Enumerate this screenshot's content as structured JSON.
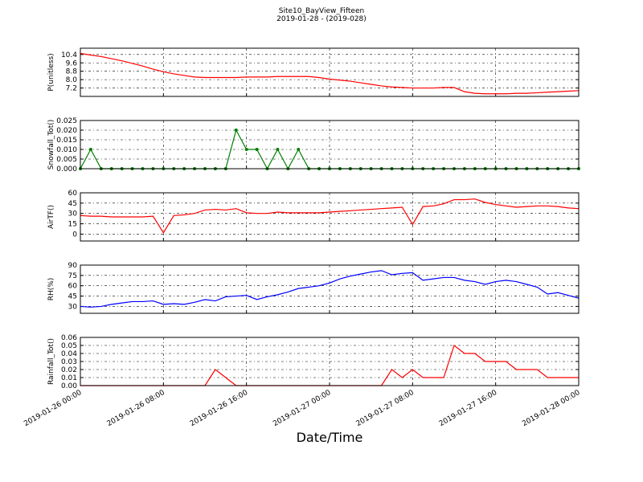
{
  "chart_data": [
    {
      "type": "line",
      "title": "Site10_BayView_Fifteen",
      "subtitle": "2019-01-28 - (2019-028)",
      "y_label": "P(unitless)",
      "x": [
        "2019-01-26 00:00",
        "2019-01-26 01:00",
        "2019-01-26 02:00",
        "2019-01-26 03:00",
        "2019-01-26 04:00",
        "2019-01-26 05:00",
        "2019-01-26 06:00",
        "2019-01-26 07:00",
        "2019-01-26 08:00",
        "2019-01-26 09:00",
        "2019-01-26 10:00",
        "2019-01-26 11:00",
        "2019-01-26 12:00",
        "2019-01-26 13:00",
        "2019-01-26 14:00",
        "2019-01-26 15:00",
        "2019-01-26 16:00",
        "2019-01-26 17:00",
        "2019-01-26 18:00",
        "2019-01-26 19:00",
        "2019-01-26 20:00",
        "2019-01-26 21:00",
        "2019-01-26 22:00",
        "2019-01-26 23:00",
        "2019-01-27 00:00",
        "2019-01-27 01:00",
        "2019-01-27 02:00",
        "2019-01-27 03:00",
        "2019-01-27 04:00",
        "2019-01-27 05:00",
        "2019-01-27 06:00",
        "2019-01-27 07:00",
        "2019-01-27 08:00",
        "2019-01-27 09:00",
        "2019-01-27 10:00",
        "2019-01-27 11:00",
        "2019-01-27 12:00",
        "2019-01-27 13:00",
        "2019-01-27 14:00",
        "2019-01-27 15:00",
        "2019-01-27 16:00",
        "2019-01-27 17:00",
        "2019-01-27 18:00",
        "2019-01-27 19:00",
        "2019-01-27 20:00",
        "2019-01-27 21:00",
        "2019-01-27 22:00",
        "2019-01-27 23:00",
        "2019-01-28 00:00"
      ],
      "series": [
        {
          "color": "#ff0000",
          "values": [
            10.5,
            10.35,
            10.2,
            10.0,
            9.8,
            9.55,
            9.3,
            9.0,
            8.75,
            8.55,
            8.4,
            8.25,
            8.2,
            8.2,
            8.2,
            8.2,
            8.25,
            8.25,
            8.25,
            8.3,
            8.3,
            8.3,
            8.3,
            8.2,
            8.05,
            7.95,
            7.85,
            7.7,
            7.55,
            7.4,
            7.3,
            7.25,
            7.2,
            7.2,
            7.2,
            7.25,
            7.25,
            6.85,
            6.7,
            6.65,
            6.65,
            6.65,
            6.7,
            6.7,
            6.75,
            6.8,
            6.85,
            6.9,
            6.95
          ]
        }
      ],
      "xlim": [
        "2019-01-26 00:00",
        "2019-01-28 00:00"
      ],
      "ylim": [
        6.4,
        11.0
      ],
      "yticks": [
        7.2,
        {
          "value": 8,
          "label": "8.0"
        },
        8.8,
        9.6,
        10.4
      ],
      "grid": true
    },
    {
      "type": "line",
      "y_label": "Snowfall_Tot()",
      "x": [
        "2019-01-26 00:00",
        "2019-01-26 01:00",
        "2019-01-26 02:00",
        "2019-01-26 03:00",
        "2019-01-26 04:00",
        "2019-01-26 05:00",
        "2019-01-26 06:00",
        "2019-01-26 07:00",
        "2019-01-26 08:00",
        "2019-01-26 09:00",
        "2019-01-26 10:00",
        "2019-01-26 11:00",
        "2019-01-26 12:00",
        "2019-01-26 13:00",
        "2019-01-26 14:00",
        "2019-01-26 15:00",
        "2019-01-26 16:00",
        "2019-01-26 17:00",
        "2019-01-26 18:00",
        "2019-01-26 19:00",
        "2019-01-26 20:00",
        "2019-01-26 21:00",
        "2019-01-26 22:00",
        "2019-01-26 23:00",
        "2019-01-27 00:00",
        "2019-01-27 01:00",
        "2019-01-27 02:00",
        "2019-01-27 03:00",
        "2019-01-27 04:00",
        "2019-01-27 05:00",
        "2019-01-27 06:00",
        "2019-01-27 07:00",
        "2019-01-27 08:00",
        "2019-01-27 09:00",
        "2019-01-27 10:00",
        "2019-01-27 11:00",
        "2019-01-27 12:00",
        "2019-01-27 13:00",
        "2019-01-27 14:00",
        "2019-01-27 15:00",
        "2019-01-27 16:00",
        "2019-01-27 17:00",
        "2019-01-27 18:00",
        "2019-01-27 19:00",
        "2019-01-27 20:00",
        "2019-01-27 21:00",
        "2019-01-27 22:00",
        "2019-01-27 23:00",
        "2019-01-28 00:00"
      ],
      "series": [
        {
          "color": "#007f00",
          "markers": true,
          "values": [
            0,
            0.01,
            0,
            0,
            0,
            0,
            0,
            0,
            0,
            0,
            0,
            0,
            0,
            0,
            0,
            0.02,
            0.01,
            0.01,
            0,
            0.01,
            0,
            0.01,
            0,
            0,
            0,
            0,
            0,
            0,
            0,
            0,
            0,
            0,
            0,
            0,
            0,
            0,
            0,
            0,
            0,
            0,
            0,
            0,
            0,
            0,
            0,
            0,
            0,
            0,
            0
          ]
        }
      ],
      "xlim": [
        "2019-01-26 00:00",
        "2019-01-28 00:00"
      ],
      "ylim": [
        0,
        0.025
      ],
      "yticks": [
        {
          "value": 0,
          "label": "0.000"
        },
        {
          "value": 0.005,
          "label": "0.005"
        },
        {
          "value": 0.01,
          "label": "0.010"
        },
        {
          "value": 0.015,
          "label": "0.015"
        },
        {
          "value": 0.02,
          "label": "0.020"
        },
        {
          "value": 0.025,
          "label": "0.025"
        }
      ],
      "grid": true
    },
    {
      "type": "line",
      "y_label": "AirTF()",
      "x": [
        "2019-01-26 00:00",
        "2019-01-26 01:00",
        "2019-01-26 02:00",
        "2019-01-26 03:00",
        "2019-01-26 04:00",
        "2019-01-26 05:00",
        "2019-01-26 06:00",
        "2019-01-26 07:00",
        "2019-01-26 08:00",
        "2019-01-26 09:00",
        "2019-01-26 10:00",
        "2019-01-26 11:00",
        "2019-01-26 12:00",
        "2019-01-26 13:00",
        "2019-01-26 14:00",
        "2019-01-26 15:00",
        "2019-01-26 16:00",
        "2019-01-26 17:00",
        "2019-01-26 18:00",
        "2019-01-26 19:00",
        "2019-01-26 20:00",
        "2019-01-26 21:00",
        "2019-01-26 22:00",
        "2019-01-26 23:00",
        "2019-01-27 00:00",
        "2019-01-27 01:00",
        "2019-01-27 02:00",
        "2019-01-27 03:00",
        "2019-01-27 04:00",
        "2019-01-27 05:00",
        "2019-01-27 06:00",
        "2019-01-27 07:00",
        "2019-01-27 08:00",
        "2019-01-27 09:00",
        "2019-01-27 10:00",
        "2019-01-27 11:00",
        "2019-01-27 12:00",
        "2019-01-27 13:00",
        "2019-01-27 14:00",
        "2019-01-27 15:00",
        "2019-01-27 16:00",
        "2019-01-27 17:00",
        "2019-01-27 18:00",
        "2019-01-27 19:00",
        "2019-01-27 20:00",
        "2019-01-27 21:00",
        "2019-01-27 22:00",
        "2019-01-27 23:00",
        "2019-01-28 00:00"
      ],
      "series": [
        {
          "color": "#ff0000",
          "values": [
            27,
            26,
            26,
            25,
            25,
            25,
            25,
            26,
            2,
            27,
            28,
            30,
            35,
            36,
            35,
            37,
            31,
            30,
            30,
            32,
            31,
            31,
            31,
            31,
            32,
            33,
            34,
            35,
            36,
            37,
            38,
            39,
            14,
            40,
            41,
            44,
            50,
            50,
            51,
            46,
            43,
            41,
            39,
            40,
            41,
            41,
            40,
            38,
            37
          ]
        }
      ],
      "xlim": [
        "2019-01-26 00:00",
        "2019-01-28 00:00"
      ],
      "ylim": [
        -10,
        60
      ],
      "yticks": [
        0,
        15,
        30,
        45,
        60
      ],
      "grid": true
    },
    {
      "type": "line",
      "y_label": "RH(%)",
      "x": [
        "2019-01-26 00:00",
        "2019-01-26 01:00",
        "2019-01-26 02:00",
        "2019-01-26 03:00",
        "2019-01-26 04:00",
        "2019-01-26 05:00",
        "2019-01-26 06:00",
        "2019-01-26 07:00",
        "2019-01-26 08:00",
        "2019-01-26 09:00",
        "2019-01-26 10:00",
        "2019-01-26 11:00",
        "2019-01-26 12:00",
        "2019-01-26 13:00",
        "2019-01-26 14:00",
        "2019-01-26 15:00",
        "2019-01-26 16:00",
        "2019-01-26 17:00",
        "2019-01-26 18:00",
        "2019-01-26 19:00",
        "2019-01-26 20:00",
        "2019-01-26 21:00",
        "2019-01-26 22:00",
        "2019-01-26 23:00",
        "2019-01-27 00:00",
        "2019-01-27 01:00",
        "2019-01-27 02:00",
        "2019-01-27 03:00",
        "2019-01-27 04:00",
        "2019-01-27 05:00",
        "2019-01-27 06:00",
        "2019-01-27 07:00",
        "2019-01-27 08:00",
        "2019-01-27 09:00",
        "2019-01-27 10:00",
        "2019-01-27 11:00",
        "2019-01-27 12:00",
        "2019-01-27 13:00",
        "2019-01-27 14:00",
        "2019-01-27 15:00",
        "2019-01-27 16:00",
        "2019-01-27 17:00",
        "2019-01-27 18:00",
        "2019-01-27 19:00",
        "2019-01-27 20:00",
        "2019-01-27 21:00",
        "2019-01-27 22:00",
        "2019-01-27 23:00",
        "2019-01-28 00:00"
      ],
      "series": [
        {
          "color": "#0000ff",
          "values": [
            30,
            29,
            30,
            33,
            35,
            37,
            37,
            38,
            33,
            34,
            33,
            36,
            40,
            38,
            44,
            45,
            46,
            40,
            44,
            47,
            51,
            56,
            58,
            60,
            64,
            70,
            74,
            77,
            80,
            82,
            76,
            78,
            79,
            68,
            70,
            72,
            72,
            68,
            66,
            62,
            66,
            68,
            66,
            62,
            58,
            48,
            50,
            46,
            42
          ]
        }
      ],
      "xlim": [
        "2019-01-26 00:00",
        "2019-01-28 00:00"
      ],
      "ylim": [
        20,
        90
      ],
      "yticks": [
        30,
        45,
        60,
        75,
        90
      ],
      "grid": true
    },
    {
      "type": "line",
      "y_label": "Rainfall_Tot()",
      "x_label": "Date/Time",
      "x": [
        "2019-01-26 00:00",
        "2019-01-26 01:00",
        "2019-01-26 02:00",
        "2019-01-26 03:00",
        "2019-01-26 04:00",
        "2019-01-26 05:00",
        "2019-01-26 06:00",
        "2019-01-26 07:00",
        "2019-01-26 08:00",
        "2019-01-26 09:00",
        "2019-01-26 10:00",
        "2019-01-26 11:00",
        "2019-01-26 12:00",
        "2019-01-26 13:00",
        "2019-01-26 14:00",
        "2019-01-26 15:00",
        "2019-01-26 16:00",
        "2019-01-26 17:00",
        "2019-01-26 18:00",
        "2019-01-26 19:00",
        "2019-01-26 20:00",
        "2019-01-26 21:00",
        "2019-01-26 22:00",
        "2019-01-26 23:00",
        "2019-01-27 00:00",
        "2019-01-27 01:00",
        "2019-01-27 02:00",
        "2019-01-27 03:00",
        "2019-01-27 04:00",
        "2019-01-27 05:00",
        "2019-01-27 06:00",
        "2019-01-27 07:00",
        "2019-01-27 08:00",
        "2019-01-27 09:00",
        "2019-01-27 10:00",
        "2019-01-27 11:00",
        "2019-01-27 12:00",
        "2019-01-27 13:00",
        "2019-01-27 14:00",
        "2019-01-27 15:00",
        "2019-01-27 16:00",
        "2019-01-27 17:00",
        "2019-01-27 18:00",
        "2019-01-27 19:00",
        "2019-01-27 20:00",
        "2019-01-27 21:00",
        "2019-01-27 22:00",
        "2019-01-27 23:00",
        "2019-01-28 00:00"
      ],
      "series": [
        {
          "color": "#ff0000",
          "values": [
            0,
            0,
            0,
            0,
            0,
            0,
            0,
            0,
            0,
            0,
            0,
            0,
            0,
            0.02,
            0.01,
            0,
            0,
            0,
            0,
            0,
            0,
            0,
            0,
            0,
            0,
            0,
            0,
            0,
            0,
            0,
            0.02,
            0.01,
            0.02,
            0.01,
            0.01,
            0.01,
            0.05,
            0.04,
            0.04,
            0.03,
            0.03,
            0.03,
            0.02,
            0.02,
            0.02,
            0.01,
            0.01,
            0.01,
            0.01
          ]
        }
      ],
      "xlim": [
        "2019-01-26 00:00",
        "2019-01-28 00:00"
      ],
      "ylim": [
        0,
        0.06
      ],
      "xticks": [
        "2019-01-26 00:00",
        "2019-01-26 08:00",
        "2019-01-26 16:00",
        "2019-01-27 00:00",
        "2019-01-27 08:00",
        "2019-01-27 16:00",
        "2019-01-28 00:00"
      ],
      "yticks": [
        {
          "value": 0,
          "label": "0.00"
        },
        {
          "value": 0.01,
          "label": "0.01"
        },
        {
          "value": 0.02,
          "label": "0.02"
        },
        {
          "value": 0.03,
          "label": "0.03"
        },
        {
          "value": 0.04,
          "label": "0.04"
        },
        {
          "value": 0.05,
          "label": "0.05"
        },
        {
          "value": 0.06,
          "label": "0.06"
        }
      ],
      "grid": true
    }
  ]
}
